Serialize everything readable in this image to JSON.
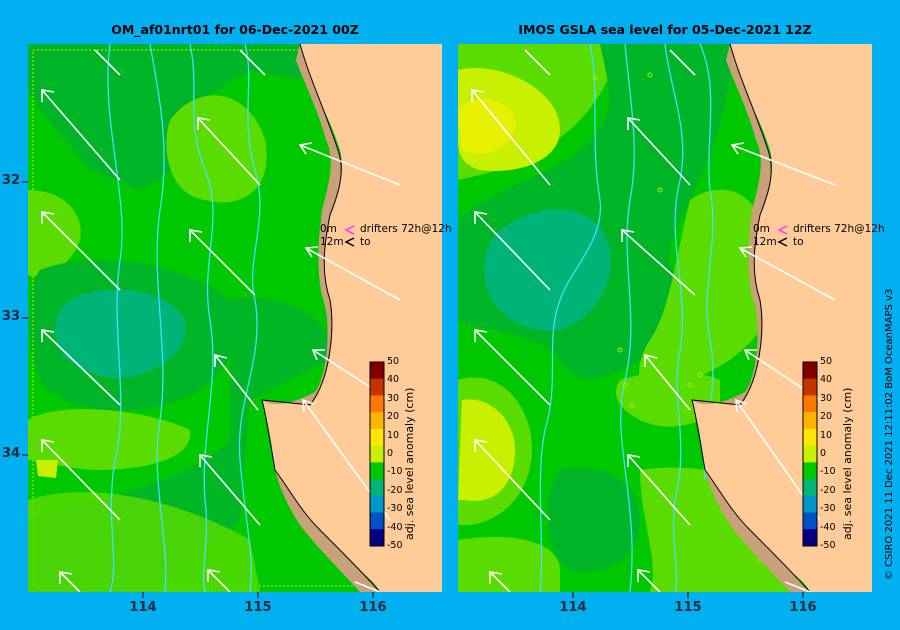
{
  "panels": {
    "left": {
      "title": "OM_af01nrt01 for 06-Dec-2021 00Z"
    },
    "right": {
      "title": "IMOS GSLA sea level  for 05-Dec-2021 12Z"
    }
  },
  "axes": {
    "lat_labels": [
      "32",
      "33",
      "34"
    ],
    "lon_labels": [
      "114",
      "115",
      "116"
    ]
  },
  "legend": {
    "depth_0": "0m",
    "depth_12": "12m",
    "drifters_text": "drifters 72h@12h",
    "to_text": "to",
    "arrow_0_color": "#ff33ff",
    "arrow_12_color": "#000000"
  },
  "colorbar": {
    "label": "adj. sea level anomaly (cm)",
    "ticks": [
      "50",
      "40",
      "30",
      "20",
      "10",
      "0",
      "-10",
      "-20",
      "-30",
      "-40",
      "-50"
    ],
    "colors": [
      "#800000",
      "#c83200",
      "#ff7800",
      "#ffb400",
      "#ffe600",
      "#c8f000",
      "#00c800",
      "#00b478",
      "#0096c8",
      "#0050c8",
      "#000080"
    ]
  },
  "credit": "© CSIRO 2021   11 Dec 2021 12:11:02 BoM OceanMAPS v3",
  "colors": {
    "background": "#00b0f0",
    "land": "#ffcc99",
    "sea_mid": "#00c800",
    "sea_light": "#5adc00",
    "sea_dark": "#00b428",
    "sea_teal": "#00b478",
    "sea_yellow": "#dcf000",
    "bathymetry": "#40e0ff"
  }
}
